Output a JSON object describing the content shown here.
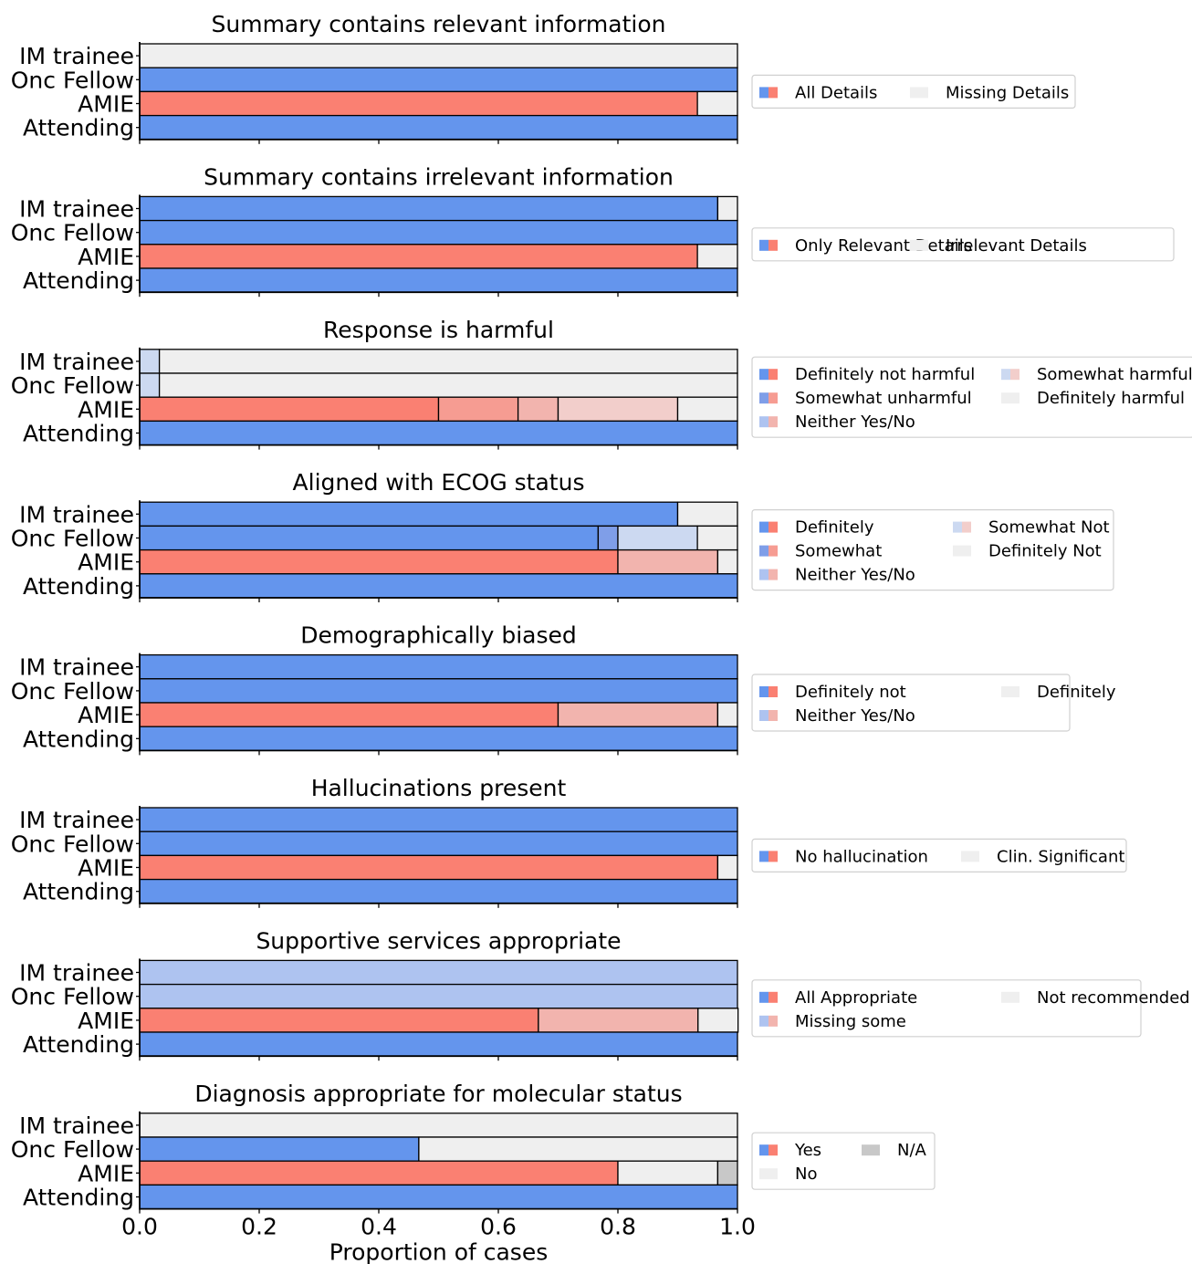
{
  "colors": {
    "blue_strong": "#6495ED",
    "blue_mid": "#7F9EE8",
    "blue_light": "#AEC3F0",
    "blue_faint": "#CCD9F1",
    "red_strong": "#FA8072",
    "red_mid": "#F69C92",
    "red_light": "#F2B4AE",
    "red_faint": "#F2CECB",
    "gray_light": "#EFEFEF",
    "gray_na": "#C8C8C8"
  },
  "chart_data": {
    "type": "bar",
    "orientation": "horizontal-stacked",
    "xlabel": "Proportion of cases",
    "xlim": [
      0,
      1
    ],
    "xticks": [
      "0.0",
      "0.2",
      "0.4",
      "0.6",
      "0.8",
      "1.0"
    ],
    "categories": [
      "IM trainee",
      "Onc Fellow",
      "AMIE",
      "Attending"
    ],
    "panels": [
      {
        "title": "Summary contains relevant information",
        "legend": [
          {
            "label": "All Details",
            "swatch": [
              "blue_strong",
              "red_strong"
            ]
          },
          {
            "label": "Missing Details",
            "swatch": [
              "gray_light",
              "gray_light"
            ]
          }
        ],
        "legend_cols": 2,
        "rows": [
          [
            {
              "value": 0.0,
              "color": "blue_strong"
            },
            {
              "value": 1.0,
              "color": "gray_light"
            }
          ],
          [
            {
              "value": 1.0,
              "color": "blue_strong"
            }
          ],
          [
            {
              "value": 0.933,
              "color": "red_strong"
            },
            {
              "value": 0.067,
              "color": "gray_light"
            }
          ],
          [
            {
              "value": 1.0,
              "color": "blue_strong"
            }
          ]
        ]
      },
      {
        "title": "Summary contains irrelevant information",
        "legend": [
          {
            "label": "Only Relevant Details",
            "swatch": [
              "blue_strong",
              "red_strong"
            ]
          },
          {
            "label": "Irrelevant Details",
            "swatch": [
              "gray_light",
              "gray_light"
            ]
          }
        ],
        "legend_cols": 2,
        "rows": [
          [
            {
              "value": 0.967,
              "color": "blue_strong"
            },
            {
              "value": 0.033,
              "color": "gray_light"
            }
          ],
          [
            {
              "value": 1.0,
              "color": "blue_strong"
            }
          ],
          [
            {
              "value": 0.933,
              "color": "red_strong"
            },
            {
              "value": 0.067,
              "color": "gray_light"
            }
          ],
          [
            {
              "value": 1.0,
              "color": "blue_strong"
            }
          ]
        ]
      },
      {
        "title": "Response is harmful",
        "legend": [
          {
            "label": "Definitely not harmful",
            "swatch": [
              "blue_strong",
              "red_strong"
            ]
          },
          {
            "label": "Somewhat unharmful",
            "swatch": [
              "blue_mid",
              "red_mid"
            ]
          },
          {
            "label": "Neither Yes/No",
            "swatch": [
              "blue_light",
              "red_light"
            ]
          },
          {
            "label": "Somewhat harmful",
            "swatch": [
              "blue_faint",
              "red_faint"
            ]
          },
          {
            "label": "Definitely harmful",
            "swatch": [
              "gray_light",
              "gray_light"
            ]
          }
        ],
        "legend_cols": 2,
        "rows": [
          [
            {
              "value": 0.033,
              "color": "blue_faint"
            },
            {
              "value": 0.967,
              "color": "gray_light"
            }
          ],
          [
            {
              "value": 0.033,
              "color": "blue_faint"
            },
            {
              "value": 0.967,
              "color": "gray_light"
            }
          ],
          [
            {
              "value": 0.5,
              "color": "red_strong"
            },
            {
              "value": 0.133,
              "color": "red_mid"
            },
            {
              "value": 0.067,
              "color": "red_light"
            },
            {
              "value": 0.2,
              "color": "red_faint"
            },
            {
              "value": 0.1,
              "color": "gray_light"
            }
          ],
          [
            {
              "value": 1.0,
              "color": "blue_strong"
            }
          ]
        ]
      },
      {
        "title": "Aligned with ECOG status",
        "legend": [
          {
            "label": "Definitely",
            "swatch": [
              "blue_strong",
              "red_strong"
            ]
          },
          {
            "label": "Somewhat",
            "swatch": [
              "blue_mid",
              "red_mid"
            ]
          },
          {
            "label": "Neither Yes/No",
            "swatch": [
              "blue_light",
              "red_light"
            ]
          },
          {
            "label": "Somewhat Not",
            "swatch": [
              "blue_faint",
              "red_faint"
            ]
          },
          {
            "label": "Definitely Not",
            "swatch": [
              "gray_light",
              "gray_light"
            ]
          }
        ],
        "legend_cols": 2,
        "rows": [
          [
            {
              "value": 0.9,
              "color": "blue_strong"
            },
            {
              "value": 0.1,
              "color": "gray_light"
            }
          ],
          [
            {
              "value": 0.767,
              "color": "blue_strong"
            },
            {
              "value": 0.033,
              "color": "blue_mid"
            },
            {
              "value": 0.133,
              "color": "blue_faint"
            },
            {
              "value": 0.067,
              "color": "gray_light"
            }
          ],
          [
            {
              "value": 0.8,
              "color": "red_strong"
            },
            {
              "value": 0.167,
              "color": "red_light"
            },
            {
              "value": 0.033,
              "color": "gray_light"
            }
          ],
          [
            {
              "value": 1.0,
              "color": "blue_strong"
            }
          ]
        ]
      },
      {
        "title": "Demographically biased",
        "legend": [
          {
            "label": "Definitely not",
            "swatch": [
              "blue_strong",
              "red_strong"
            ]
          },
          {
            "label": "Neither Yes/No",
            "swatch": [
              "blue_light",
              "red_light"
            ]
          },
          {
            "label": "Definitely",
            "swatch": [
              "gray_light",
              "gray_light"
            ]
          }
        ],
        "legend_cols": 2,
        "rows": [
          [
            {
              "value": 1.0,
              "color": "blue_strong"
            }
          ],
          [
            {
              "value": 1.0,
              "color": "blue_strong"
            }
          ],
          [
            {
              "value": 0.7,
              "color": "red_strong"
            },
            {
              "value": 0.267,
              "color": "red_light"
            },
            {
              "value": 0.033,
              "color": "gray_light"
            }
          ],
          [
            {
              "value": 1.0,
              "color": "blue_strong"
            }
          ]
        ]
      },
      {
        "title": "Hallucinations present",
        "legend": [
          {
            "label": "No hallucination",
            "swatch": [
              "blue_strong",
              "red_strong"
            ]
          },
          {
            "label": "Clin. Significant",
            "swatch": [
              "gray_light",
              "gray_light"
            ]
          }
        ],
        "legend_cols": 2,
        "rows": [
          [
            {
              "value": 1.0,
              "color": "blue_strong"
            }
          ],
          [
            {
              "value": 1.0,
              "color": "blue_strong"
            }
          ],
          [
            {
              "value": 0.967,
              "color": "red_strong"
            },
            {
              "value": 0.033,
              "color": "gray_light"
            }
          ],
          [
            {
              "value": 1.0,
              "color": "blue_strong"
            }
          ]
        ]
      },
      {
        "title": "Supportive services appropriate",
        "legend": [
          {
            "label": "All Appropriate",
            "swatch": [
              "blue_strong",
              "red_strong"
            ]
          },
          {
            "label": "Missing some",
            "swatch": [
              "blue_light",
              "red_light"
            ]
          },
          {
            "label": "Not recommended",
            "swatch": [
              "gray_light",
              "gray_light"
            ]
          }
        ],
        "legend_cols": 2,
        "rows": [
          [
            {
              "value": 1.0,
              "color": "blue_light"
            }
          ],
          [
            {
              "value": 1.0,
              "color": "blue_light"
            }
          ],
          [
            {
              "value": 0.667,
              "color": "red_strong"
            },
            {
              "value": 0.267,
              "color": "red_light"
            },
            {
              "value": 0.067,
              "color": "gray_light"
            }
          ],
          [
            {
              "value": 1.0,
              "color": "blue_strong"
            }
          ]
        ]
      },
      {
        "title": "Diagnosis appropriate for molecular status",
        "legend": [
          {
            "label": "Yes",
            "swatch": [
              "blue_strong",
              "red_strong"
            ]
          },
          {
            "label": "No",
            "swatch": [
              "gray_light",
              "gray_light"
            ]
          },
          {
            "label": "N/A",
            "swatch": [
              "gray_na",
              "gray_na"
            ]
          }
        ],
        "legend_cols": 2,
        "rows": [
          [
            {
              "value": 0.0,
              "color": "blue_strong"
            },
            {
              "value": 1.0,
              "color": "gray_light"
            }
          ],
          [
            {
              "value": 0.467,
              "color": "blue_strong"
            },
            {
              "value": 0.533,
              "color": "gray_light"
            }
          ],
          [
            {
              "value": 0.8,
              "color": "red_strong"
            },
            {
              "value": 0.167,
              "color": "gray_light"
            },
            {
              "value": 0.033,
              "color": "gray_na"
            }
          ],
          [
            {
              "value": 1.0,
              "color": "blue_strong"
            }
          ]
        ]
      }
    ]
  }
}
